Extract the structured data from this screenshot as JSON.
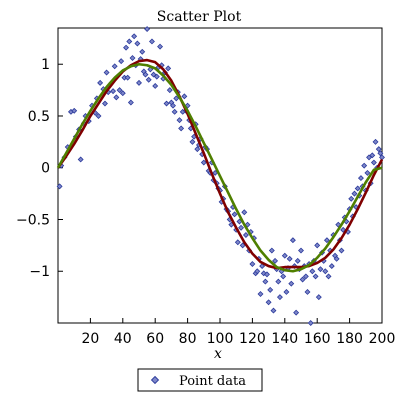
{
  "chart_data": {
    "type": "scatter",
    "title": "Scatter Plot",
    "xlabel": "x",
    "ylabel": "",
    "xlim": [
      0,
      200
    ],
    "ylim": [
      -1.5,
      1.35
    ],
    "grid": false,
    "legend_position": "bottom-center",
    "x_ticks": [
      20,
      40,
      60,
      80,
      100,
      120,
      140,
      160,
      180,
      200
    ],
    "x_tick_labels": [
      "20",
      "40",
      "60",
      "80",
      "100",
      "120",
      "140",
      "160",
      "180",
      "200"
    ],
    "y_ticks": [
      1,
      0.5,
      0,
      -0.5,
      -1
    ],
    "y_tick_labels": [
      "1",
      "0.5",
      "0",
      "−0.5",
      "−1"
    ],
    "series": [
      {
        "name": "Point data",
        "kind": "points",
        "color": "#2b3a9b",
        "points": [
          [
            1,
            -0.18
          ],
          [
            2,
            0.02
          ],
          [
            4,
            0.1
          ],
          [
            6,
            0.2
          ],
          [
            8,
            0.54
          ],
          [
            10,
            0.55
          ],
          [
            11,
            0.3
          ],
          [
            13,
            0.37
          ],
          [
            14,
            0.08
          ],
          [
            16,
            0.43
          ],
          [
            17,
            0.5
          ],
          [
            19,
            0.45
          ],
          [
            21,
            0.6
          ],
          [
            23,
            0.53
          ],
          [
            24,
            0.67
          ],
          [
            25,
            0.5
          ],
          [
            26,
            0.82
          ],
          [
            28,
            0.76
          ],
          [
            29,
            0.62
          ],
          [
            30,
            0.92
          ],
          [
            31,
            0.73
          ],
          [
            33,
            0.82
          ],
          [
            34,
            0.74
          ],
          [
            35,
            0.98
          ],
          [
            36,
            0.68
          ],
          [
            38,
            0.75
          ],
          [
            39,
            1.03
          ],
          [
            40,
            0.72
          ],
          [
            41,
            0.87
          ],
          [
            42,
            1.16
          ],
          [
            43,
            0.87
          ],
          [
            44,
            1.22
          ],
          [
            45,
            0.63
          ],
          [
            46,
            1.06
          ],
          [
            47,
            1.27
          ],
          [
            48,
            0.99
          ],
          [
            49,
            1.2
          ],
          [
            50,
            0.82
          ],
          [
            51,
            1.05
          ],
          [
            52,
            1.12
          ],
          [
            53,
            0.93
          ],
          [
            54,
            0.9
          ],
          [
            55,
            1.34
          ],
          [
            56,
            0.85
          ],
          [
            57,
            0.95
          ],
          [
            58,
            1.22
          ],
          [
            59,
            0.9
          ],
          [
            60,
            0.79
          ],
          [
            61,
            0.88
          ],
          [
            62,
            0.97
          ],
          [
            63,
            1.17
          ],
          [
            64,
            0.99
          ],
          [
            65,
            0.86
          ],
          [
            66,
            0.92
          ],
          [
            67,
            0.62
          ],
          [
            68,
            0.96
          ],
          [
            69,
            0.75
          ],
          [
            70,
            0.63
          ],
          [
            71,
            0.6
          ],
          [
            72,
            0.54
          ],
          [
            73,
            0.67
          ],
          [
            74,
            0.73
          ],
          [
            75,
            0.46
          ],
          [
            76,
            0.38
          ],
          [
            77,
            0.54
          ],
          [
            78,
            0.69
          ],
          [
            79,
            0.55
          ],
          [
            80,
            0.6
          ],
          [
            81,
            0.46
          ],
          [
            82,
            0.38
          ],
          [
            83,
            0.25
          ],
          [
            84,
            0.3
          ],
          [
            85,
            0.42
          ],
          [
            86,
            0.18
          ],
          [
            87,
            0.22
          ],
          [
            88,
            0.28
          ],
          [
            89,
            0.13
          ],
          [
            90,
            0.05
          ],
          [
            91,
            0.2
          ],
          [
            92,
            0.18
          ],
          [
            93,
            -0.03
          ],
          [
            94,
            -0.05
          ],
          [
            95,
            0.05
          ],
          [
            96,
            -0.12
          ],
          [
            97,
            -0.05
          ],
          [
            98,
            -0.15
          ],
          [
            99,
            -0.2
          ],
          [
            100,
            -0.22
          ],
          [
            101,
            -0.33
          ],
          [
            102,
            -0.3
          ],
          [
            103,
            -0.18
          ],
          [
            104,
            -0.4
          ],
          [
            105,
            -0.42
          ],
          [
            106,
            -0.5
          ],
          [
            107,
            -0.55
          ],
          [
            108,
            -0.38
          ],
          [
            109,
            -0.45
          ],
          [
            110,
            -0.6
          ],
          [
            111,
            -0.72
          ],
          [
            112,
            -0.52
          ],
          [
            113,
            -0.58
          ],
          [
            114,
            -0.75
          ],
          [
            115,
            -0.43
          ],
          [
            116,
            -0.65
          ],
          [
            117,
            -0.55
          ],
          [
            118,
            -0.8
          ],
          [
            119,
            -0.62
          ],
          [
            120,
            -0.93
          ],
          [
            121,
            -0.68
          ],
          [
            122,
            -1.02
          ],
          [
            123,
            -1.0
          ],
          [
            124,
            -0.88
          ],
          [
            125,
            -1.22
          ],
          [
            126,
            -0.95
          ],
          [
            127,
            -1.02
          ],
          [
            128,
            -1.1
          ],
          [
            129,
            -1.03
          ],
          [
            130,
            -1.3
          ],
          [
            131,
            -1.18
          ],
          [
            132,
            -0.8
          ],
          [
            133,
            -1.38
          ],
          [
            134,
            -0.9
          ],
          [
            135,
            -0.98
          ],
          [
            136,
            -1.1
          ],
          [
            137,
            -1.25
          ],
          [
            138,
            -1.0
          ],
          [
            139,
            -1.05
          ],
          [
            140,
            -0.85
          ],
          [
            141,
            -1.2
          ],
          [
            142,
            -0.97
          ],
          [
            143,
            -0.88
          ],
          [
            144,
            -1.12
          ],
          [
            145,
            -0.7
          ],
          [
            146,
            -0.95
          ],
          [
            147,
            -1.4
          ],
          [
            148,
            -0.9
          ],
          [
            149,
            -0.98
          ],
          [
            150,
            -0.8
          ],
          [
            151,
            -1.08
          ],
          [
            152,
            -0.95
          ],
          [
            153,
            -1.05
          ],
          [
            154,
            -1.2
          ],
          [
            155,
            -0.93
          ],
          [
            156,
            -1.5
          ],
          [
            157,
            -1.0
          ],
          [
            158,
            -0.9
          ],
          [
            159,
            -1.05
          ],
          [
            160,
            -0.75
          ],
          [
            161,
            -1.25
          ],
          [
            162,
            -0.98
          ],
          [
            163,
            -0.82
          ],
          [
            164,
            -0.9
          ],
          [
            165,
            -1.0
          ],
          [
            166,
            -0.7
          ],
          [
            167,
            -1.05
          ],
          [
            168,
            -0.8
          ],
          [
            169,
            -0.95
          ],
          [
            170,
            -0.65
          ],
          [
            171,
            -0.85
          ],
          [
            172,
            -0.88
          ],
          [
            173,
            -0.55
          ],
          [
            174,
            -0.7
          ],
          [
            175,
            -0.8
          ],
          [
            176,
            -0.6
          ],
          [
            177,
            -0.48
          ],
          [
            178,
            -0.52
          ],
          [
            179,
            -0.62
          ],
          [
            180,
            -0.4
          ],
          [
            181,
            -0.3
          ],
          [
            182,
            -0.47
          ],
          [
            183,
            -0.25
          ],
          [
            184,
            -0.38
          ],
          [
            185,
            -0.2
          ],
          [
            186,
            -0.27
          ],
          [
            187,
            -0.1
          ],
          [
            188,
            -0.18
          ],
          [
            189,
            0.02
          ],
          [
            190,
            -0.22
          ],
          [
            191,
            -0.05
          ],
          [
            192,
            0.1
          ],
          [
            193,
            -0.15
          ],
          [
            194,
            0.12
          ],
          [
            195,
            0.05
          ],
          [
            196,
            0.25
          ],
          [
            197,
            0.0
          ],
          [
            198,
            0.18
          ],
          [
            199,
            0.14
          ],
          [
            200,
            0.1
          ]
        ]
      },
      {
        "name": "",
        "kind": "line",
        "color": "#800000",
        "curve": "fit-a",
        "x": [
          0,
          5,
          10,
          15,
          20,
          25,
          30,
          35,
          40,
          45,
          50,
          55,
          60,
          65,
          70,
          75,
          80,
          85,
          90,
          95,
          100,
          105,
          110,
          115,
          120,
          125,
          130,
          135,
          140,
          145,
          150,
          155,
          160,
          165,
          170,
          175,
          180,
          185,
          190,
          195,
          200
        ],
        "y": [
          0.0,
          0.11,
          0.23,
          0.36,
          0.5,
          0.62,
          0.74,
          0.84,
          0.93,
          0.99,
          1.03,
          1.04,
          1.02,
          0.95,
          0.84,
          0.69,
          0.52,
          0.33,
          0.14,
          -0.06,
          -0.25,
          -0.43,
          -0.58,
          -0.72,
          -0.83,
          -0.91,
          -0.95,
          -0.97,
          -0.96,
          -0.96,
          -0.96,
          -0.95,
          -0.92,
          -0.87,
          -0.79,
          -0.68,
          -0.55,
          -0.4,
          -0.24,
          -0.07,
          0.08
        ]
      },
      {
        "name": "",
        "kind": "line",
        "color": "#4f7f00",
        "curve": "fit-b",
        "x": [
          0,
          5,
          10,
          15,
          20,
          25,
          30,
          35,
          40,
          45,
          50,
          55,
          60,
          65,
          70,
          75,
          80,
          85,
          90,
          95,
          100,
          105,
          110,
          115,
          120,
          125,
          130,
          135,
          140,
          145,
          150,
          155,
          160,
          165,
          170,
          175,
          180,
          185,
          190,
          195,
          200
        ],
        "y": [
          0.0,
          0.14,
          0.28,
          0.42,
          0.55,
          0.67,
          0.78,
          0.87,
          0.94,
          0.98,
          1.0,
          0.99,
          0.96,
          0.89,
          0.8,
          0.68,
          0.55,
          0.4,
          0.24,
          0.08,
          -0.08,
          -0.24,
          -0.4,
          -0.55,
          -0.68,
          -0.8,
          -0.89,
          -0.96,
          -0.99,
          -1.0,
          -0.98,
          -0.94,
          -0.87,
          -0.78,
          -0.67,
          -0.55,
          -0.42,
          -0.28,
          -0.14,
          -0.02,
          0.0
        ]
      }
    ]
  }
}
